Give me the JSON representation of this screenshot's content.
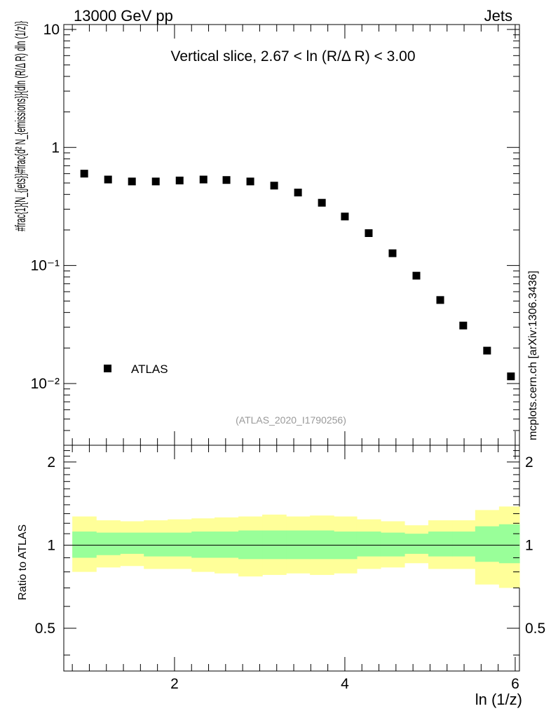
{
  "header": {
    "energy_label": "13000 GeV pp",
    "category_label": "Jets"
  },
  "side_label": "mcplots.cern.ch [arXiv:1306.3436]",
  "chart_data": [
    {
      "type": "scatter",
      "panel": "main",
      "title": "Vertical slice, 2.67 < ln (R/Δ R) < 3.00",
      "xlabel": "ln (1/z)",
      "ylabel": "#frac{1}{N_{jets}}#frac{d² N_{emissions}}{dln (R/Δ R) dln (1/z)}",
      "yscale": "log",
      "xlim": [
        0.7,
        6.05
      ],
      "ylim": [
        0.003,
        11
      ],
      "y_tick_labels": [
        "10⁻²",
        "10⁻¹",
        "1",
        "10"
      ],
      "x_tick_labels": [
        "2",
        "4",
        "6"
      ],
      "legend": {
        "position": "bottom-left",
        "entries": [
          "ATLAS"
        ]
      },
      "watermark": "(ATLAS_2020_I1790256)",
      "series": [
        {
          "name": "ATLAS",
          "x": [
            0.94,
            1.22,
            1.5,
            1.78,
            2.06,
            2.34,
            2.61,
            2.89,
            3.17,
            3.45,
            3.73,
            4.0,
            4.28,
            4.56,
            4.84,
            5.12,
            5.39,
            5.67,
            5.95
          ],
          "y": [
            0.6,
            0.535,
            0.515,
            0.515,
            0.525,
            0.535,
            0.53,
            0.515,
            0.475,
            0.415,
            0.34,
            0.26,
            0.188,
            0.127,
            0.082,
            0.051,
            0.031,
            0.019,
            0.0115
          ]
        }
      ]
    },
    {
      "type": "area",
      "panel": "ratio",
      "ylabel": "Ratio to ATLAS",
      "xlim": [
        0.7,
        6.05
      ],
      "ylim": [
        0.35,
        2.3
      ],
      "y_tick_labels": [
        "0.5",
        "1",
        "2"
      ],
      "reference_line": 1.0,
      "bins": [
        0.8,
        1.08,
        1.36,
        1.64,
        1.92,
        2.2,
        2.47,
        2.75,
        3.03,
        3.31,
        3.59,
        3.87,
        4.14,
        4.42,
        4.7,
        4.98,
        5.26,
        5.53,
        5.81,
        6.09
      ],
      "bands": [
        {
          "name": "total uncertainty",
          "color": "#ffff99",
          "lo": [
            0.8,
            0.83,
            0.84,
            0.82,
            0.82,
            0.8,
            0.79,
            0.77,
            0.78,
            0.79,
            0.78,
            0.79,
            0.82,
            0.83,
            0.86,
            0.82,
            0.82,
            0.72,
            0.7
          ],
          "hi": [
            1.27,
            1.23,
            1.22,
            1.23,
            1.24,
            1.25,
            1.26,
            1.27,
            1.29,
            1.27,
            1.28,
            1.27,
            1.24,
            1.22,
            1.18,
            1.23,
            1.23,
            1.34,
            1.38
          ]
        },
        {
          "name": "statistical uncertainty",
          "color": "#99ff99",
          "lo": [
            0.9,
            0.92,
            0.93,
            0.91,
            0.91,
            0.9,
            0.9,
            0.89,
            0.89,
            0.89,
            0.89,
            0.89,
            0.91,
            0.91,
            0.93,
            0.91,
            0.91,
            0.87,
            0.86
          ],
          "hi": [
            1.12,
            1.11,
            1.11,
            1.11,
            1.11,
            1.12,
            1.12,
            1.13,
            1.13,
            1.13,
            1.13,
            1.12,
            1.12,
            1.11,
            1.1,
            1.12,
            1.12,
            1.17,
            1.19
          ]
        }
      ]
    }
  ]
}
